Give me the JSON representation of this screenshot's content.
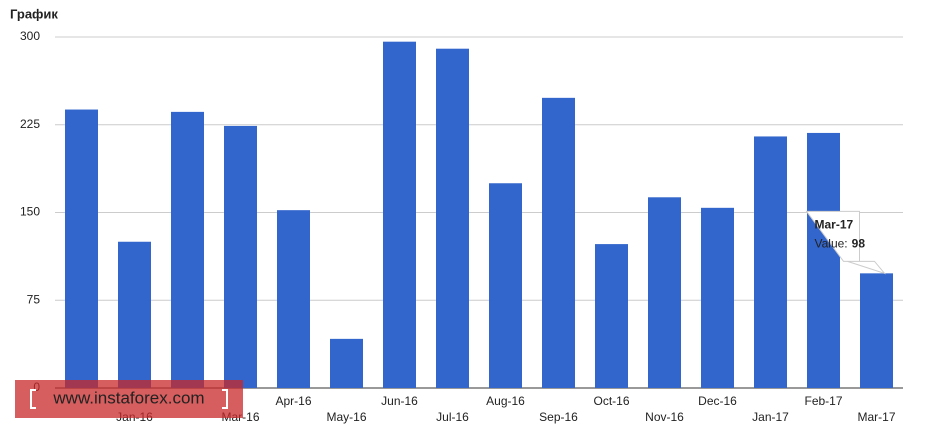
{
  "chart_data": {
    "type": "bar",
    "title": "График",
    "categories": [
      null,
      "Jan-16",
      null,
      "Mar-16",
      "Apr-16",
      "May-16",
      "Jun-16",
      "Jul-16",
      "Aug-16",
      "Sep-16",
      "Oct-16",
      "Nov-16",
      "Dec-16",
      "Jan-17",
      "Feb-17",
      "Mar-17"
    ],
    "values": [
      238,
      125,
      236,
      224,
      152,
      42,
      296,
      290,
      175,
      248,
      123,
      163,
      154,
      215,
      218,
      98
    ],
    "color": "#3366cc",
    "ylim": [
      0,
      300
    ],
    "yticks": [
      0,
      75,
      150,
      225,
      300
    ],
    "grid": true,
    "tooltip": {
      "category": "Mar-17",
      "label": "Value:",
      "value": "98"
    },
    "watermark": "www.instaforex.com"
  }
}
